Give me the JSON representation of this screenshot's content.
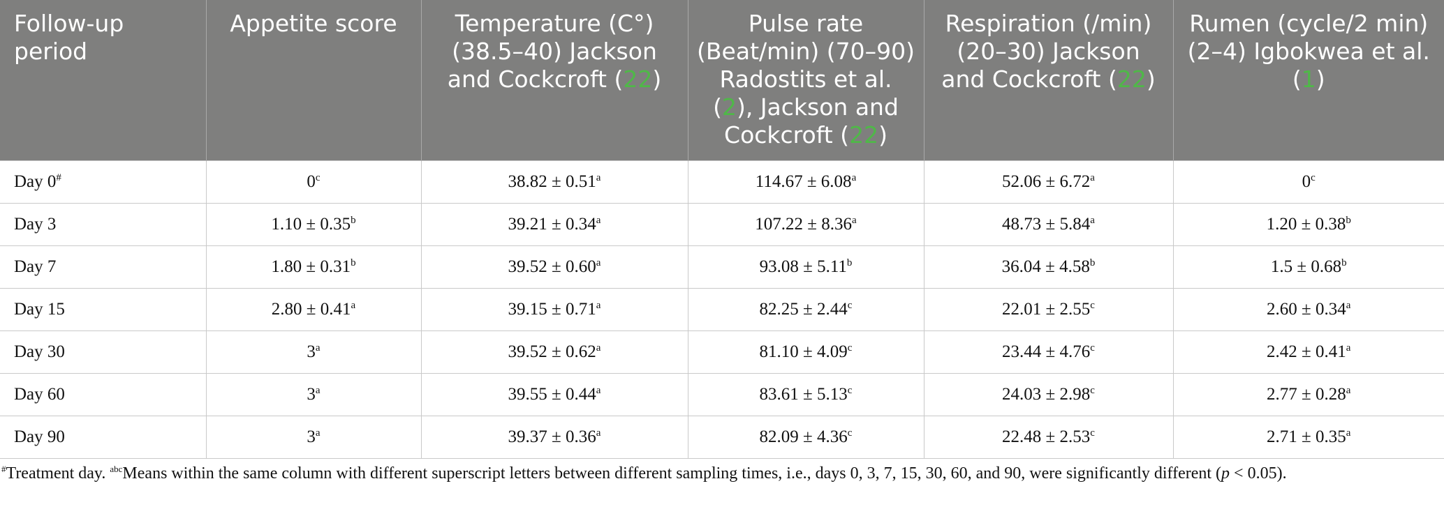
{
  "table": {
    "header": [
      [
        {
          "text": "Follow-up period"
        }
      ],
      [
        {
          "text": "Appetite score"
        }
      ],
      [
        {
          "text": "Temperature (C°) (38.5–40) Jackson and Cockcroft ("
        },
        {
          "ref": "22"
        },
        {
          "text": ")"
        }
      ],
      [
        {
          "text": "Pulse rate (Beat/min) (70–90) Radostits et al. ("
        },
        {
          "ref": "2"
        },
        {
          "text": "), Jackson and Cockcroft ("
        },
        {
          "ref": "22"
        },
        {
          "text": ")"
        }
      ],
      [
        {
          "text": "Respiration (/min) (20–30) Jackson and Cockcroft ("
        },
        {
          "ref": "22"
        },
        {
          "text": ")"
        }
      ],
      [
        {
          "text": "Rumen (cycle/2 min) (2–4) Igbokwea et al. ("
        },
        {
          "ref": "1"
        },
        {
          "text": ")"
        }
      ]
    ],
    "rows": [
      [
        {
          "text": "Day 0",
          "sup": "#"
        },
        {
          "text": "0",
          "sup": "c"
        },
        {
          "text": "38.82 ± 0.51",
          "sup": "a"
        },
        {
          "text": "114.67 ± 6.08",
          "sup": "a"
        },
        {
          "text": "52.06 ± 6.72",
          "sup": "a"
        },
        {
          "text": "0",
          "sup": "c"
        }
      ],
      [
        {
          "text": "Day 3"
        },
        {
          "text": "1.10 ± 0.35",
          "sup": "b"
        },
        {
          "text": "39.21 ± 0.34",
          "sup": "a"
        },
        {
          "text": "107.22 ± 8.36",
          "sup": "a"
        },
        {
          "text": "48.73 ± 5.84",
          "sup": "a"
        },
        {
          "text": "1.20 ± 0.38",
          "sup": "b"
        }
      ],
      [
        {
          "text": "Day 7"
        },
        {
          "text": "1.80 ± 0.31",
          "sup": "b"
        },
        {
          "text": "39.52 ± 0.60",
          "sup": "a"
        },
        {
          "text": "93.08 ± 5.11",
          "sup": "b"
        },
        {
          "text": "36.04 ± 4.58",
          "sup": "b"
        },
        {
          "text": "1.5 ± 0.68",
          "sup": "b"
        }
      ],
      [
        {
          "text": "Day 15"
        },
        {
          "text": "2.80 ± 0.41",
          "sup": "a"
        },
        {
          "text": "39.15 ± 0.71",
          "sup": "a"
        },
        {
          "text": "82.25 ± 2.44",
          "sup": "c"
        },
        {
          "text": "22.01 ± 2.55",
          "sup": "c"
        },
        {
          "text": "2.60 ± 0.34",
          "sup": "a"
        }
      ],
      [
        {
          "text": "Day 30"
        },
        {
          "text": "3",
          "sup": "a"
        },
        {
          "text": "39.52 ± 0.62",
          "sup": "a"
        },
        {
          "text": "81.10 ± 4.09",
          "sup": "c"
        },
        {
          "text": "23.44 ± 4.76",
          "sup": "c"
        },
        {
          "text": "2.42 ± 0.41",
          "sup": "a"
        }
      ],
      [
        {
          "text": "Day 60"
        },
        {
          "text": "3",
          "sup": "a"
        },
        {
          "text": "39.55 ± 0.44",
          "sup": "a"
        },
        {
          "text": "83.61 ± 5.13",
          "sup": "c"
        },
        {
          "text": "24.03 ± 2.98",
          "sup": "c"
        },
        {
          "text": "2.77 ± 0.28",
          "sup": "a"
        }
      ],
      [
        {
          "text": "Day 90"
        },
        {
          "text": "3",
          "sup": "a"
        },
        {
          "text": "39.37 ± 0.36",
          "sup": "a"
        },
        {
          "text": "82.09 ± 4.36",
          "sup": "c"
        },
        {
          "text": "22.48 ± 2.53",
          "sup": "c"
        },
        {
          "text": "2.71 ± 0.35",
          "sup": "a"
        }
      ]
    ]
  },
  "footnote": [
    {
      "sup": "#"
    },
    {
      "text": "Treatment day. "
    },
    {
      "sup": "abc"
    },
    {
      "text": "Means within the same column with different superscript letters between different sampling times, i.e., days 0, 3, 7, 15, 30, 60, and 90, were significantly different ("
    },
    {
      "italic": "p"
    },
    {
      "text": " < 0.05)."
    }
  ]
}
